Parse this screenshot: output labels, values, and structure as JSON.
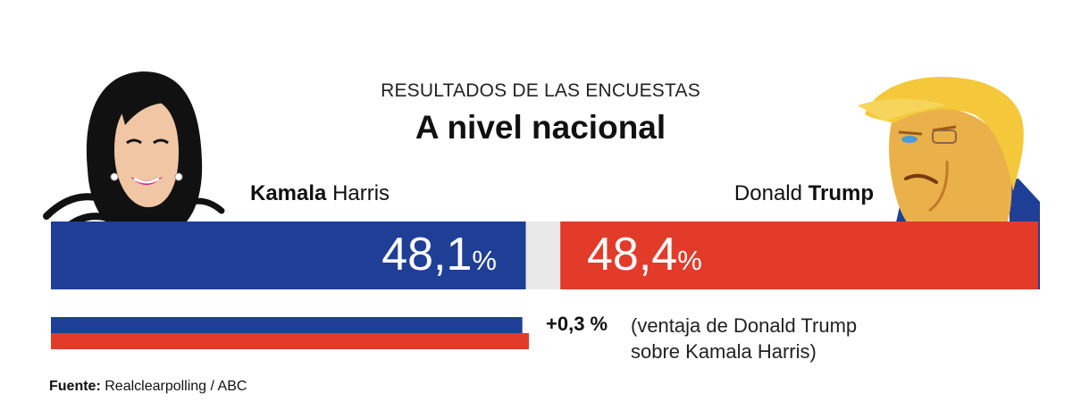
{
  "header": {
    "subtitle": "RESULTADOS DE LAS ENCUESTAS",
    "title": "A nivel nacional"
  },
  "candidates": {
    "harris": {
      "first": "Kamala",
      "last": "Harris",
      "value_text": "48,1",
      "unit": "%",
      "color": "#1f3f97"
    },
    "trump": {
      "first": "Donald",
      "last": "Trump",
      "value_text": "48,4",
      "unit": "%",
      "color": "#e23b2a"
    }
  },
  "difference": {
    "value_text": "+0,3 %",
    "note_line1": "(ventaja de Donald Trump",
    "note_line2": "sobre Kamala Harris)"
  },
  "source": {
    "label": "Fuente:",
    "text": "Realclearpolling / ABC"
  },
  "chart_data": {
    "type": "bar",
    "title": "A nivel nacional",
    "subtitle": "RESULTADOS DE LAS ENCUESTAS",
    "categories": [
      "Kamala Harris",
      "Donald Trump"
    ],
    "values": [
      48.1,
      48.4
    ],
    "unit": "%",
    "colors": [
      "#1f3f97",
      "#e23b2a"
    ],
    "undecided_color": "#e9e9e9",
    "difference": 0.3,
    "difference_leader": "Donald Trump"
  }
}
